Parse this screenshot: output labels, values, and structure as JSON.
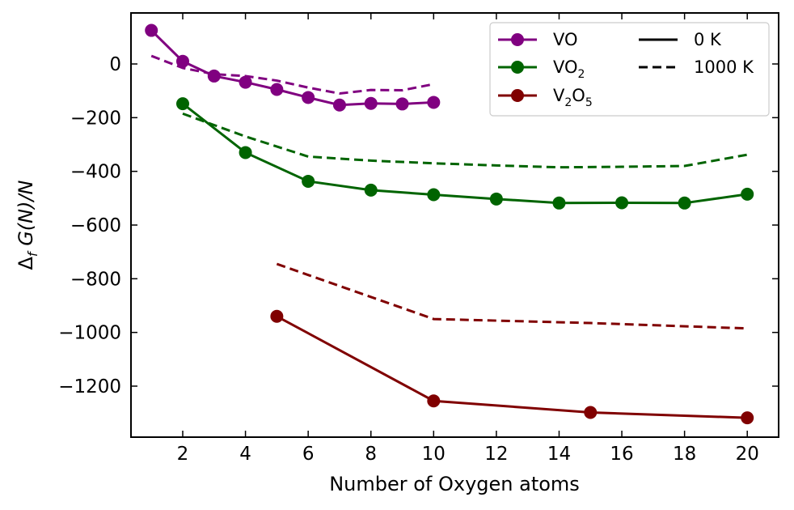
{
  "chart_data": {
    "type": "line",
    "xlabel": "Number of Oxygen atoms",
    "ylabel": "Δf G(N)/N",
    "xlim": [
      0.35,
      21.0
    ],
    "ylim": [
      -1390,
      190
    ],
    "xticks": [
      2,
      4,
      6,
      8,
      10,
      12,
      14,
      16,
      18,
      20
    ],
    "yticks": [
      0,
      -200,
      -400,
      -600,
      -800,
      -1000,
      -1200
    ],
    "ytick_labels": [
      "0",
      "−200",
      "−400",
      "−600",
      "−800",
      "−1000",
      "−1200"
    ],
    "legend": {
      "placement": "top-right",
      "series_entries": [
        {
          "name": "VO",
          "base": "VO",
          "sub1": "",
          "mid": "",
          "sub2": ""
        },
        {
          "name": "VO2",
          "base": "VO",
          "sub1": "",
          "mid": "",
          "sub2": "2"
        },
        {
          "name": "V2O5",
          "base": "V",
          "sub1": "2",
          "mid": "O",
          "sub2": "5"
        }
      ],
      "style_entries": [
        {
          "label": "0 K",
          "style": "solid"
        },
        {
          "label": "1000 K",
          "style": "dashed"
        }
      ]
    },
    "series": [
      {
        "name": "VO",
        "color": "#800080",
        "zeroK": {
          "x": [
            1,
            2,
            3,
            4,
            5,
            6,
            7,
            8,
            9,
            10
          ],
          "y": [
            125,
            10,
            -45,
            -68,
            -95,
            -125,
            -153,
            -147,
            -149,
            -143
          ]
        },
        "k1000": {
          "x": [
            1,
            2,
            3,
            4,
            5,
            6,
            7,
            8,
            9,
            10
          ],
          "y": [
            30,
            -15,
            -38,
            -45,
            -62,
            -88,
            -110,
            -97,
            -98,
            -75
          ]
        }
      },
      {
        "name": "VO2",
        "color": "#006400",
        "zeroK": {
          "x": [
            2,
            4,
            6,
            8,
            10,
            12,
            14,
            16,
            18,
            20
          ],
          "y": [
            -148,
            -330,
            -437,
            -470,
            -487,
            -503,
            -518,
            -517,
            -518,
            -485
          ]
        },
        "k1000": {
          "x": [
            2,
            4,
            6,
            8,
            10,
            12,
            14,
            16,
            18,
            20
          ],
          "y": [
            -185,
            -270,
            -345,
            -360,
            -370,
            -378,
            -385,
            -383,
            -380,
            -338
          ]
        }
      },
      {
        "name": "V2O5",
        "color": "#800000",
        "zeroK": {
          "x": [
            5,
            10,
            15,
            20
          ],
          "y": [
            -940,
            -1255,
            -1298,
            -1318
          ]
        },
        "k1000": {
          "x": [
            5,
            10,
            15,
            20
          ],
          "y": [
            -745,
            -950,
            -965,
            -985
          ]
        }
      }
    ]
  }
}
